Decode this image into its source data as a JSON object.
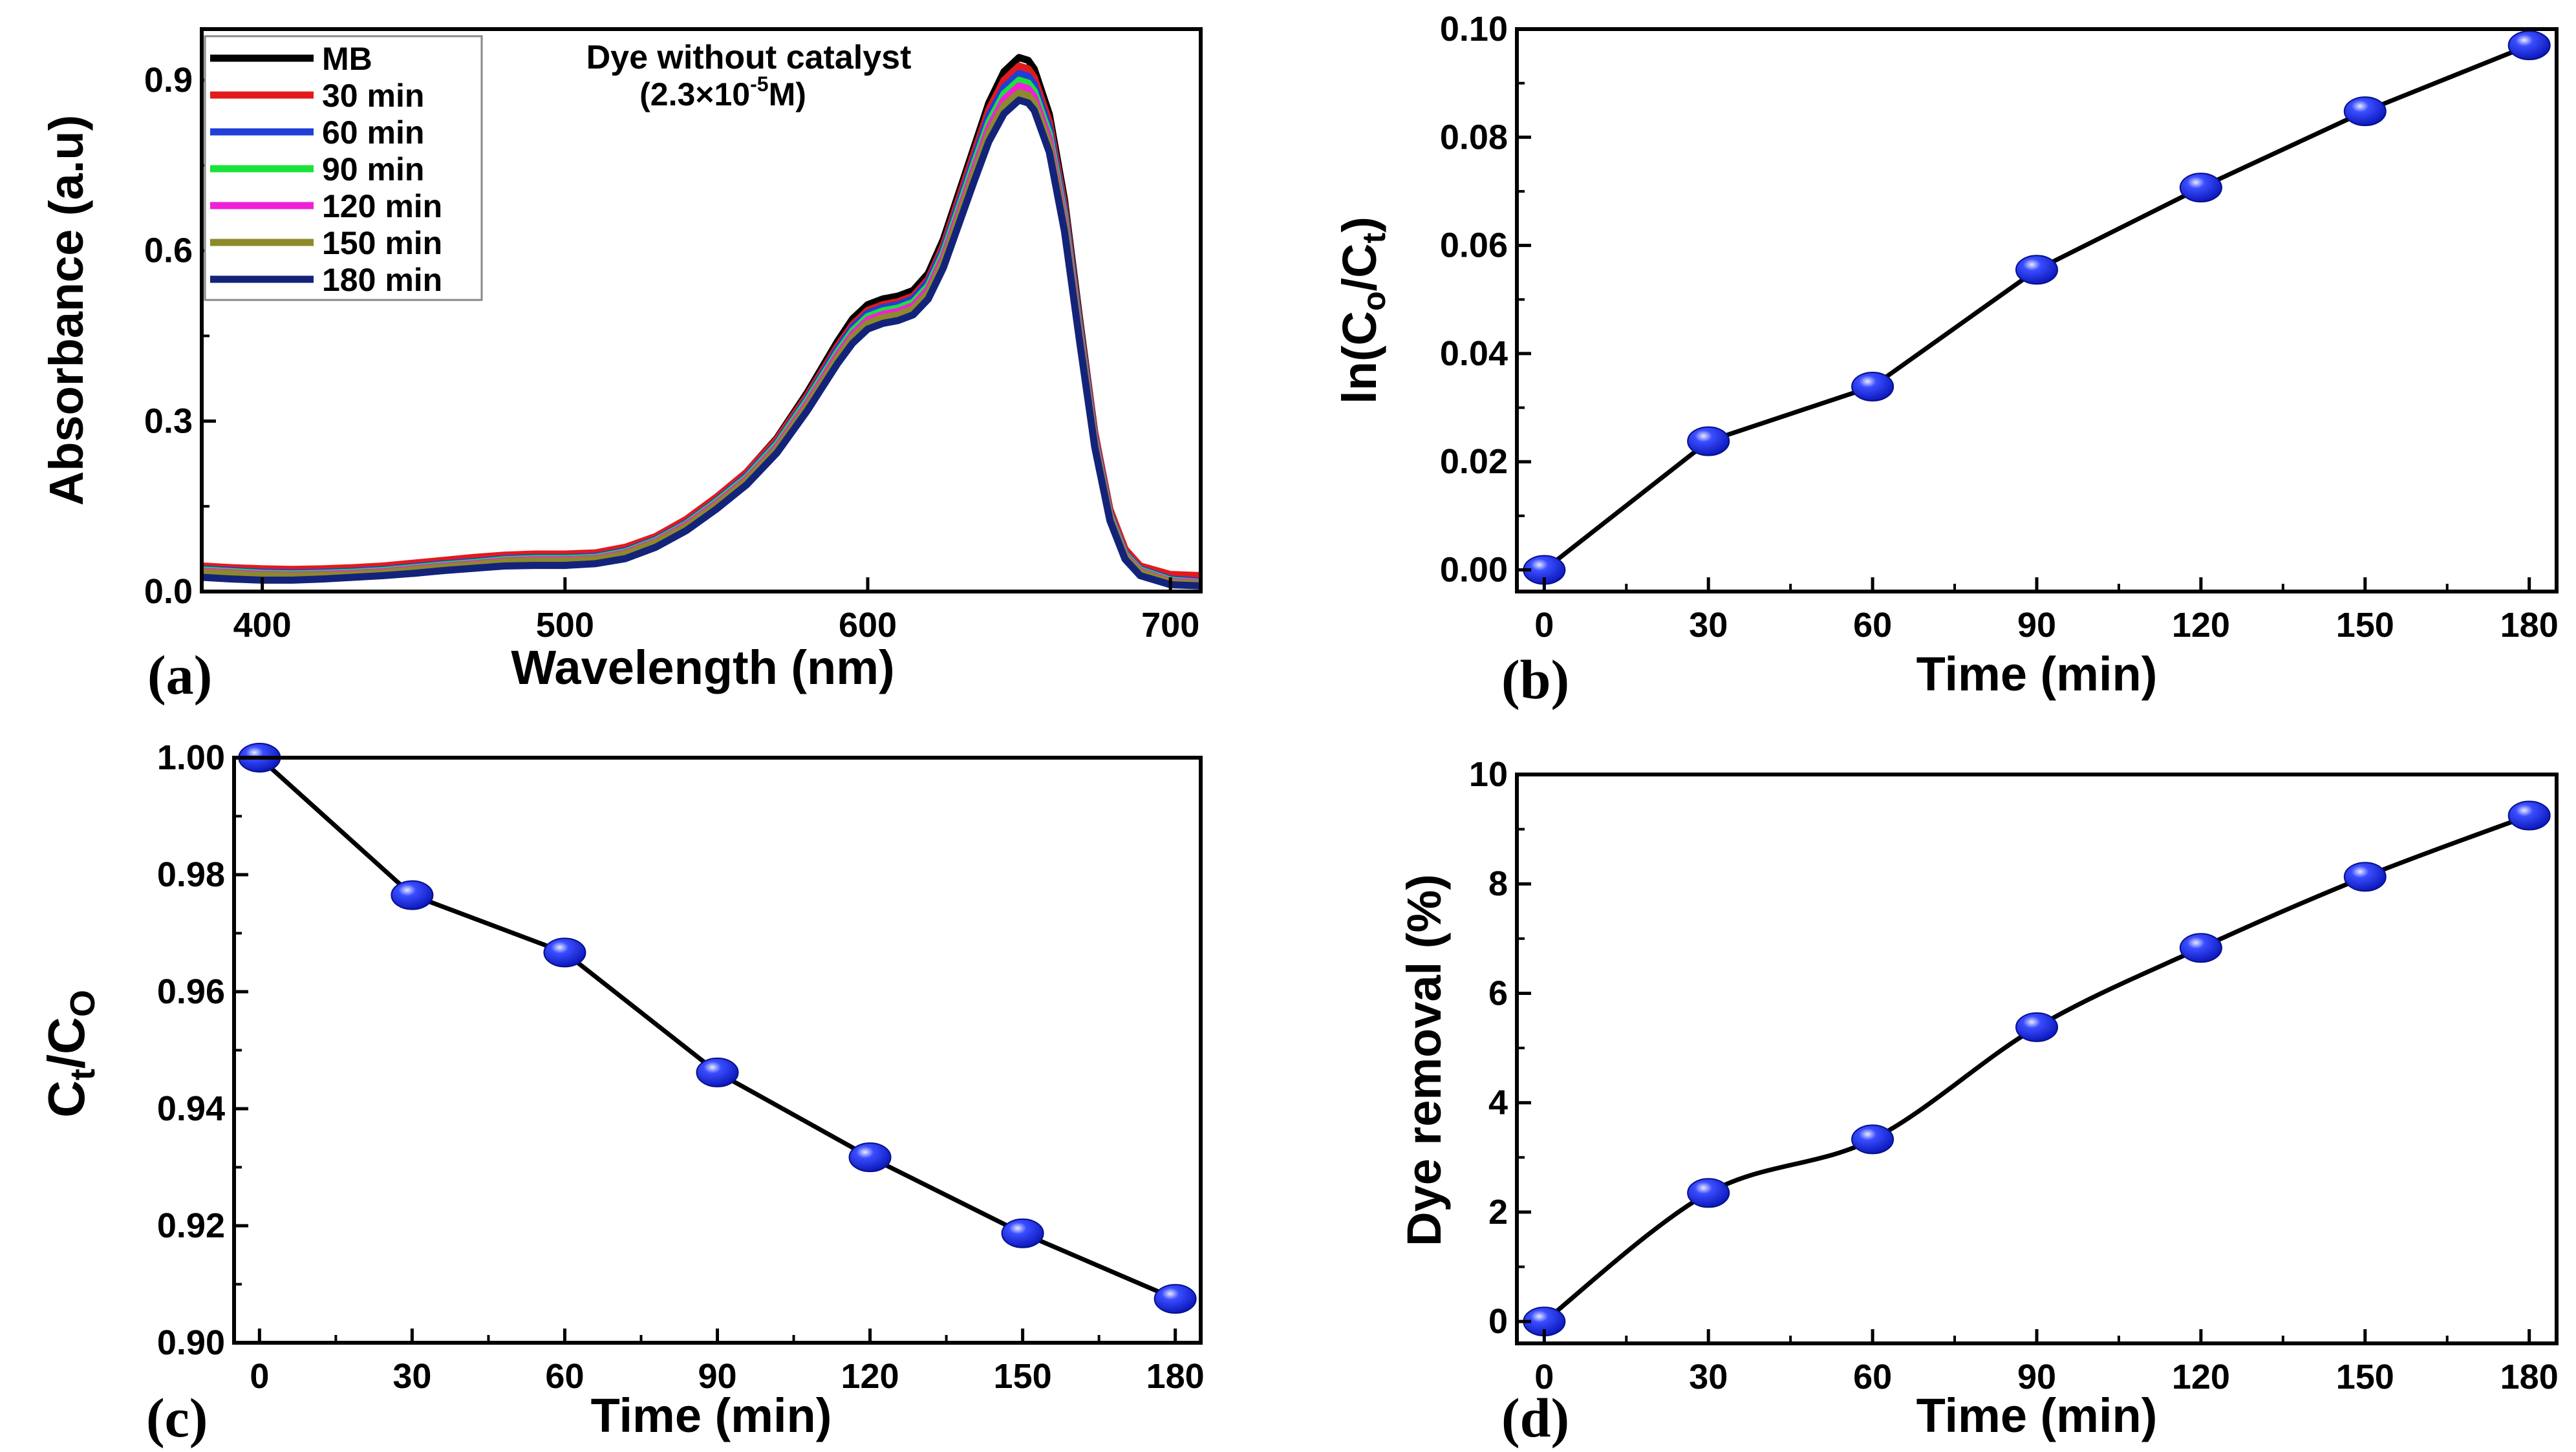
{
  "figure": {
    "panel_labels": [
      "(a)",
      "(b)",
      "(c)",
      "(d)"
    ]
  },
  "chart_data": [
    {
      "id": "a",
      "type": "line",
      "panel_label": "(a)",
      "title": "",
      "annotation": {
        "line1": "Dye without catalyst",
        "line2_prefix": "(2.3×10",
        "line2_sup": "-5",
        "line2_suffix": "M)"
      },
      "xlabel": "Wavelength (nm)",
      "ylabel": "Absorbance (a.u)",
      "xlim": [
        380,
        710
      ],
      "ylim": [
        0.0,
        0.99
      ],
      "xticks": [
        400,
        500,
        600,
        700
      ],
      "xtick_labels": [
        "400",
        "500",
        "600",
        "700"
      ],
      "yticks": [
        0.0,
        0.3,
        0.6,
        0.9
      ],
      "ytick_labels": [
        "0.0",
        "0.3",
        "0.6",
        "0.9"
      ],
      "legend_position": "top-left",
      "x": [
        380,
        390,
        400,
        410,
        420,
        430,
        440,
        450,
        460,
        470,
        480,
        490,
        500,
        510,
        520,
        530,
        540,
        550,
        560,
        570,
        580,
        590,
        595,
        600,
        605,
        610,
        615,
        620,
        625,
        630,
        635,
        640,
        645,
        650,
        653,
        655,
        660,
        665,
        670,
        675,
        680,
        685,
        690,
        700,
        710
      ],
      "series": [
        {
          "name": "MB",
          "color": "#000000",
          "values": [
            0.042,
            0.038,
            0.035,
            0.034,
            0.035,
            0.037,
            0.04,
            0.045,
            0.05,
            0.055,
            0.06,
            0.062,
            0.062,
            0.065,
            0.075,
            0.095,
            0.125,
            0.165,
            0.21,
            0.27,
            0.35,
            0.44,
            0.48,
            0.505,
            0.515,
            0.52,
            0.53,
            0.56,
            0.62,
            0.7,
            0.78,
            0.86,
            0.915,
            0.94,
            0.935,
            0.92,
            0.84,
            0.69,
            0.48,
            0.28,
            0.14,
            0.07,
            0.04,
            0.02,
            0.015
          ]
        },
        {
          "name": "30 min",
          "color": "#e31a1c",
          "values": [
            0.045,
            0.042,
            0.04,
            0.039,
            0.04,
            0.042,
            0.045,
            0.05,
            0.055,
            0.06,
            0.064,
            0.066,
            0.066,
            0.068,
            0.078,
            0.097,
            0.127,
            0.166,
            0.21,
            0.268,
            0.345,
            0.432,
            0.47,
            0.495,
            0.505,
            0.51,
            0.52,
            0.55,
            0.61,
            0.69,
            0.77,
            0.848,
            0.9,
            0.925,
            0.92,
            0.905,
            0.827,
            0.68,
            0.473,
            0.28,
            0.145,
            0.075,
            0.045,
            0.03,
            0.028
          ]
        },
        {
          "name": "60 min",
          "color": "#1f3fd8",
          "values": [
            0.04,
            0.037,
            0.034,
            0.033,
            0.034,
            0.036,
            0.039,
            0.044,
            0.049,
            0.053,
            0.058,
            0.06,
            0.06,
            0.062,
            0.072,
            0.092,
            0.121,
            0.16,
            0.204,
            0.262,
            0.34,
            0.427,
            0.465,
            0.49,
            0.5,
            0.505,
            0.515,
            0.545,
            0.603,
            0.681,
            0.76,
            0.837,
            0.887,
            0.912,
            0.907,
            0.893,
            0.816,
            0.67,
            0.466,
            0.272,
            0.138,
            0.068,
            0.04,
            0.022,
            0.018
          ]
        },
        {
          "name": "90 min",
          "color": "#19e33a",
          "values": [
            0.038,
            0.035,
            0.032,
            0.031,
            0.032,
            0.034,
            0.037,
            0.042,
            0.047,
            0.051,
            0.056,
            0.058,
            0.058,
            0.06,
            0.07,
            0.09,
            0.119,
            0.158,
            0.201,
            0.259,
            0.336,
            0.421,
            0.459,
            0.484,
            0.494,
            0.499,
            0.509,
            0.538,
            0.596,
            0.673,
            0.751,
            0.826,
            0.876,
            0.9,
            0.895,
            0.881,
            0.805,
            0.662,
            0.46,
            0.268,
            0.135,
            0.066,
            0.038,
            0.02,
            0.016
          ]
        },
        {
          "name": "120 min",
          "color": "#f020d8",
          "values": [
            0.036,
            0.033,
            0.03,
            0.029,
            0.03,
            0.032,
            0.035,
            0.04,
            0.045,
            0.049,
            0.054,
            0.056,
            0.056,
            0.058,
            0.068,
            0.088,
            0.117,
            0.155,
            0.198,
            0.255,
            0.331,
            0.416,
            0.453,
            0.478,
            0.488,
            0.493,
            0.503,
            0.532,
            0.589,
            0.665,
            0.742,
            0.816,
            0.866,
            0.89,
            0.885,
            0.871,
            0.796,
            0.654,
            0.455,
            0.265,
            0.133,
            0.064,
            0.036,
            0.018,
            0.015
          ]
        },
        {
          "name": "150 min",
          "color": "#8c8a2a",
          "values": [
            0.034,
            0.031,
            0.028,
            0.027,
            0.028,
            0.03,
            0.033,
            0.038,
            0.043,
            0.047,
            0.052,
            0.054,
            0.054,
            0.056,
            0.066,
            0.086,
            0.114,
            0.152,
            0.195,
            0.251,
            0.326,
            0.41,
            0.447,
            0.472,
            0.482,
            0.487,
            0.497,
            0.525,
            0.581,
            0.657,
            0.733,
            0.806,
            0.855,
            0.878,
            0.873,
            0.86,
            0.785,
            0.645,
            0.449,
            0.261,
            0.131,
            0.062,
            0.034,
            0.016,
            0.013
          ]
        },
        {
          "name": "180 min",
          "color": "#14237a",
          "values": [
            0.025,
            0.022,
            0.02,
            0.02,
            0.022,
            0.025,
            0.028,
            0.032,
            0.037,
            0.041,
            0.045,
            0.046,
            0.046,
            0.049,
            0.058,
            0.078,
            0.107,
            0.145,
            0.188,
            0.244,
            0.318,
            0.401,
            0.437,
            0.462,
            0.472,
            0.477,
            0.487,
            0.515,
            0.57,
            0.645,
            0.72,
            0.792,
            0.841,
            0.865,
            0.86,
            0.847,
            0.773,
            0.634,
            0.44,
            0.254,
            0.125,
            0.057,
            0.028,
            0.012,
            0.01
          ]
        }
      ]
    },
    {
      "id": "b",
      "type": "line",
      "panel_label": "(b)",
      "title": "",
      "xlabel": "Time (min)",
      "ylabel": {
        "prefix": "ln(C",
        "sub1": "o",
        "mid": "/C",
        "sub2": "t",
        "suffix": ")"
      },
      "xlim": [
        -5,
        185
      ],
      "ylim": [
        -0.004,
        0.1
      ],
      "xticks": [
        0,
        30,
        60,
        90,
        120,
        150,
        180
      ],
      "xtick_labels": [
        "0",
        "30",
        "60",
        "90",
        "120",
        "150",
        "180"
      ],
      "yticks": [
        0.0,
        0.02,
        0.04,
        0.06,
        0.08,
        0.1
      ],
      "ytick_labels": [
        "0.00",
        "0.02",
        "0.04",
        "0.06",
        "0.08",
        "0.10"
      ],
      "x": [
        0,
        30,
        60,
        90,
        120,
        150,
        180
      ],
      "values": [
        0.0,
        0.0238,
        0.0339,
        0.0555,
        0.0707,
        0.0848,
        0.097
      ]
    },
    {
      "id": "c",
      "type": "line",
      "panel_label": "(c)",
      "title": "",
      "xlabel": "Time (min)",
      "ylabel": {
        "prefix": "C",
        "sub1": "t",
        "mid": "/C",
        "sub2": "O",
        "suffix": ""
      },
      "xlim": [
        -5,
        185
      ],
      "ylim": [
        0.9,
        1.0
      ],
      "xticks": [
        0,
        30,
        60,
        90,
        120,
        150,
        180
      ],
      "xtick_labels": [
        "0",
        "30",
        "60",
        "90",
        "120",
        "150",
        "180"
      ],
      "yticks": [
        0.9,
        0.92,
        0.94,
        0.96,
        0.98,
        1.0
      ],
      "ytick_labels": [
        "0.90",
        "0.92",
        "0.94",
        "0.96",
        "0.98",
        "1.00"
      ],
      "x": [
        0,
        30,
        60,
        90,
        120,
        150,
        180
      ],
      "values": [
        1.0,
        0.9765,
        0.9667,
        0.9462,
        0.9317,
        0.9187,
        0.9075
      ]
    },
    {
      "id": "d",
      "type": "line",
      "panel_label": "(d)",
      "title": "",
      "xlabel": "Time (min)",
      "ylabel": "Dye removal (%)",
      "xlim": [
        -5,
        185
      ],
      "ylim": [
        -0.4,
        10
      ],
      "xticks": [
        0,
        30,
        60,
        90,
        120,
        150,
        180
      ],
      "xtick_labels": [
        "0",
        "30",
        "60",
        "90",
        "120",
        "150",
        "180"
      ],
      "yticks": [
        0,
        2,
        4,
        6,
        8,
        10
      ],
      "ytick_labels": [
        "0",
        "2",
        "4",
        "6",
        "8",
        "10"
      ],
      "x": [
        0,
        30,
        60,
        90,
        120,
        150,
        180
      ],
      "values": [
        0.0,
        2.35,
        3.33,
        5.38,
        6.83,
        8.13,
        9.25
      ]
    }
  ]
}
